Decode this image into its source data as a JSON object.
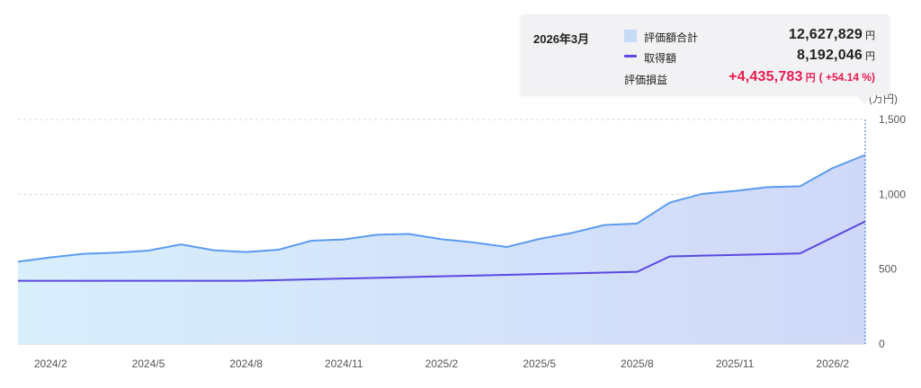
{
  "chart_data": {
    "type": "area",
    "unit": "(万円)",
    "ylim": [
      0,
      1500
    ],
    "y_ticks": [
      "0",
      "500",
      "1,000",
      "1,500"
    ],
    "y_tick_values": [
      0,
      500,
      1000,
      1500
    ],
    "x_tick_labels": [
      "2024/2",
      "2024/5",
      "2024/8",
      "2024/11",
      "2025/2",
      "2025/5",
      "2025/8",
      "2025/11",
      "2026/2"
    ],
    "x_tick_indices": [
      1,
      4,
      7,
      10,
      13,
      16,
      19,
      22,
      25
    ],
    "x": [
      "2024/1",
      "2024/2",
      "2024/3",
      "2024/4",
      "2024/5",
      "2024/6",
      "2024/7",
      "2024/8",
      "2024/9",
      "2024/10",
      "2024/11",
      "2024/12",
      "2025/1",
      "2025/2",
      "2025/3",
      "2025/4",
      "2025/5",
      "2025/6",
      "2025/7",
      "2025/8",
      "2025/9",
      "2025/10",
      "2025/11",
      "2025/12",
      "2026/1",
      "2026/2",
      "2026/3"
    ],
    "series": [
      {
        "name": "評価額合計",
        "kind": "area",
        "color": "#5b9bf0",
        "values": [
          550,
          578,
          602,
          610,
          624,
          665,
          626,
          614,
          630,
          690,
          698,
          730,
          735,
          700,
          678,
          648,
          702,
          742,
          795,
          805,
          945,
          1003,
          1022,
          1048,
          1054,
          1175,
          1263
        ]
      },
      {
        "name": "取得額",
        "kind": "line",
        "color": "#5a48e2",
        "values": [
          422,
          422,
          422,
          422,
          422,
          422,
          422,
          422,
          427,
          432,
          437,
          442,
          447,
          452,
          457,
          462,
          467,
          472,
          477,
          482,
          585,
          590,
          595,
          600,
          605,
          712,
          819
        ]
      }
    ],
    "grid": true,
    "legend": "none",
    "hover_index": 26
  },
  "tooltip": {
    "date": "2026年3月",
    "rows": [
      {
        "label": "評価額合計",
        "value": "12,627,829",
        "unit": "円"
      },
      {
        "label": "取得額",
        "value": "8,192,046",
        "unit": "円"
      }
    ],
    "gain": {
      "label": "評価損益",
      "value": "+4,435,783",
      "unit": "円",
      "percent": "( +54.14 %)"
    }
  },
  "colors": {
    "area_fill_left": "#d8effc",
    "area_fill_right": "#d0d8f8",
    "area_line": "#5b9bf0",
    "cost_line": "#5a48e2",
    "gain": "#e8194f"
  }
}
